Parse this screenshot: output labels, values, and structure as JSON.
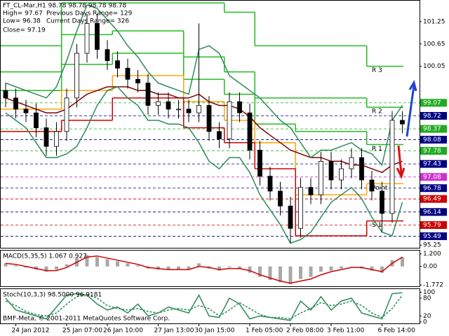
{
  "chart_data": {
    "type": "candlestick",
    "annotations": [
      "FT_CL-Mar,H1  98.78 98.78 98.78 98.78",
      "High= 97.67",
      "Previous Days Range= 129",
      "Low= 96.38",
      "Current Days Range= 326",
      "Close= 97.19"
    ],
    "watermark": "BMF-Meta, © 2001-2011 MetaQuotes Software Corp.",
    "x": [
      null,
      "24 Jan 2012",
      null,
      null,
      null,
      null,
      "25 Jan 07:00",
      null,
      null,
      null,
      "26 Jan 10:00",
      null,
      null,
      null,
      null,
      "27 Jan 13:00",
      null,
      null,
      null,
      "30 Jan 15:00",
      null,
      null,
      null,
      null,
      "1 Feb 05:00",
      null,
      null,
      null,
      "2 Feb 08:00",
      null,
      null,
      null,
      "3 Feb 11:00",
      null,
      null,
      null,
      null,
      "6 Feb 14:00",
      null,
      null
    ],
    "candles": [
      [
        99.4,
        99.6,
        98.95,
        99.2
      ],
      [
        99.2,
        99.45,
        98.65,
        98.9
      ],
      [
        98.9,
        99.15,
        98.55,
        98.8
      ],
      [
        98.8,
        99.05,
        98.15,
        98.4
      ],
      [
        98.4,
        98.65,
        97.65,
        97.9
      ],
      [
        97.9,
        98.55,
        97.65,
        98.3
      ],
      [
        98.3,
        99.45,
        98.05,
        99.2
      ],
      [
        99.2,
        100.65,
        98.95,
        100.4
      ],
      [
        100.4,
        101.45,
        100.15,
        101.2
      ],
      [
        101.2,
        101.45,
        100.25,
        100.5
      ],
      [
        100.5,
        100.75,
        99.95,
        100.2
      ],
      [
        100.2,
        100.45,
        99.75,
        100.0
      ],
      [
        100.0,
        100.25,
        99.45,
        99.7
      ],
      [
        99.7,
        99.95,
        99.35,
        99.6
      ],
      [
        99.6,
        99.85,
        98.75,
        99.0
      ],
      [
        99.0,
        99.35,
        98.75,
        99.1
      ],
      [
        99.1,
        99.35,
        98.65,
        98.9
      ],
      [
        98.9,
        99.15,
        98.65,
        98.9
      ],
      [
        98.9,
        99.15,
        98.55,
        98.8
      ],
      [
        98.8,
        101.2,
        98.55,
        99.0
      ],
      [
        99.0,
        99.25,
        98.05,
        98.3
      ],
      [
        98.3,
        98.55,
        97.85,
        98.1
      ],
      [
        98.1,
        99.35,
        97.85,
        99.1
      ],
      [
        99.1,
        99.35,
        98.55,
        98.8
      ],
      [
        98.8,
        99.05,
        97.55,
        97.8
      ],
      [
        97.8,
        98.05,
        96.85,
        97.1
      ],
      [
        97.1,
        97.35,
        96.45,
        96.7
      ],
      [
        96.7,
        96.95,
        96.05,
        96.3
      ],
      [
        96.3,
        96.55,
        95.3,
        95.7
      ],
      [
        95.7,
        97.05,
        95.45,
        96.8
      ],
      [
        96.8,
        97.05,
        96.35,
        96.6
      ],
      [
        96.6,
        97.75,
        96.35,
        97.5
      ],
      [
        97.5,
        97.75,
        96.75,
        97.0
      ],
      [
        97.0,
        97.55,
        96.75,
        97.3
      ],
      [
        97.3,
        97.85,
        97.05,
        97.6
      ],
      [
        97.6,
        97.85,
        96.75,
        97.0
      ],
      [
        97.0,
        97.25,
        96.45,
        96.7
      ],
      [
        96.7,
        96.95,
        95.6,
        96.1
      ],
      [
        96.1,
        98.85,
        95.85,
        98.6
      ],
      [
        98.6,
        98.85,
        98.25,
        98.5
      ]
    ],
    "ylim": [
      95.16,
      101.81
    ],
    "yticks": [
      101.25,
      100.65,
      100.05,
      95.25
    ],
    "lines": [
      {
        "color": "#800000",
        "values": [
          99.2,
          99.1,
          99.0,
          98.9,
          98.8,
          98.8,
          98.9,
          99.1,
          99.3,
          99.4,
          99.5,
          99.5,
          99.5,
          99.4,
          99.4,
          99.3,
          99.3,
          99.2,
          99.2,
          99.3,
          99.1,
          99.0,
          99.0,
          98.9,
          98.7,
          98.4,
          98.2,
          98.0,
          97.8,
          97.7,
          97.6,
          97.6,
          97.5,
          97.5,
          97.4,
          97.4,
          97.3,
          97.2,
          97.4,
          97.5
        ]
      },
      {
        "color": "#2e8b57",
        "values": [
          99.6,
          99.5,
          99.4,
          99.3,
          99.2,
          99.5,
          100.2,
          101.0,
          101.7,
          101.6,
          101.3,
          101.0,
          100.6,
          100.3,
          99.9,
          99.6,
          99.5,
          99.4,
          99.3,
          100.5,
          100.6,
          100.4,
          99.8,
          99.6,
          99.4,
          99.2,
          98.9,
          98.6,
          98.4,
          98.0,
          97.6,
          97.8,
          97.8,
          97.9,
          98.0,
          97.8,
          97.7,
          97.4,
          98.6,
          99.0
        ]
      },
      {
        "color": "#2e8b57",
        "values": [
          98.8,
          98.6,
          98.4,
          98.0,
          97.6,
          97.6,
          97.7,
          97.9,
          98.4,
          99.0,
          99.4,
          99.5,
          99.2,
          99.0,
          98.6,
          98.6,
          98.5,
          98.5,
          98.4,
          98.0,
          97.5,
          97.3,
          97.6,
          97.6,
          97.2,
          96.6,
          96.2,
          95.8,
          95.3,
          95.4,
          95.6,
          96.0,
          96.4,
          96.6,
          96.8,
          96.5,
          96.0,
          95.6,
          95.5,
          96.4
        ]
      }
    ],
    "pivots": [
      {
        "name": "R 3",
        "color": "#22bb22",
        "values": [
          100.6,
          100.6,
          100.6,
          100.6,
          100.6,
          100.6,
          101.75,
          101.75,
          101.75,
          101.75,
          101.75,
          101.75,
          101.75,
          101.75,
          101.75,
          101.75,
          101.75,
          101.75,
          101.75,
          101.75,
          101.75,
          101.75,
          101.5,
          101.5,
          101.5,
          100.6,
          100.6,
          100.6,
          100.6,
          100.6,
          100.6,
          100.6,
          100.6,
          100.6,
          100.6,
          100.6,
          100.05,
          100.05,
          100.05,
          100.05
        ]
      },
      {
        "name": "R 2",
        "color": "#22bb22",
        "values": [
          99.9,
          99.9,
          99.9,
          99.9,
          99.9,
          99.9,
          100.9,
          100.9,
          100.9,
          100.9,
          100.9,
          101.0,
          101.0,
          101.0,
          101.0,
          101.0,
          101.0,
          101.0,
          100.3,
          100.3,
          100.3,
          100.3,
          99.9,
          99.9,
          99.9,
          99.2,
          99.2,
          99.2,
          99.2,
          99.2,
          99.2,
          99.2,
          99.2,
          99.2,
          99.2,
          99.2,
          98.95,
          98.95,
          98.95,
          98.95
        ]
      },
      {
        "name": "R 1",
        "color": "#22bb22",
        "values": [
          99.4,
          99.4,
          99.4,
          99.4,
          99.4,
          99.4,
          100.1,
          100.1,
          100.1,
          100.1,
          100.1,
          100.4,
          100.4,
          100.4,
          100.4,
          100.4,
          100.4,
          100.4,
          99.7,
          99.7,
          99.7,
          99.7,
          99.3,
          99.3,
          99.3,
          98.5,
          98.5,
          98.5,
          98.5,
          98.3,
          98.3,
          98.3,
          98.3,
          98.3,
          98.3,
          98.3,
          97.95,
          97.95,
          97.95,
          97.95
        ]
      },
      {
        "name": "Point",
        "color": "#ffa500",
        "values": [
          98.9,
          98.9,
          98.9,
          98.9,
          98.9,
          98.9,
          99.4,
          99.4,
          99.4,
          99.4,
          99.4,
          99.8,
          99.8,
          99.8,
          99.8,
          99.8,
          99.8,
          99.8,
          99.1,
          99.1,
          99.1,
          99.1,
          98.6,
          98.6,
          98.6,
          98.0,
          98.0,
          98.0,
          98.0,
          96.6,
          96.6,
          96.6,
          96.6,
          96.6,
          96.6,
          96.6,
          96.9,
          96.9,
          96.9,
          96.9
        ]
      },
      {
        "name": "S 1",
        "color": "#cc0000",
        "values": [
          98.3,
          98.3,
          98.3,
          98.3,
          98.3,
          98.3,
          98.6,
          98.6,
          98.6,
          98.6,
          98.6,
          99.2,
          99.2,
          99.2,
          99.2,
          99.2,
          99.2,
          99.2,
          98.4,
          98.4,
          98.4,
          98.4,
          98.0,
          98.0,
          98.0,
          97.3,
          97.3,
          97.3,
          97.3,
          95.5,
          95.5,
          95.5,
          95.5,
          95.5,
          95.5,
          95.5,
          95.9,
          95.9,
          95.9,
          95.9
        ]
      }
    ],
    "levels": [
      {
        "value": 99.07,
        "color": "#22aa22"
      },
      {
        "value": 98.72,
        "color": "#000080"
      },
      {
        "value": 98.37,
        "color": "#22aa22"
      },
      {
        "value": 98.08,
        "color": "#000080"
      },
      {
        "value": 97.78,
        "color": "#22aa22"
      },
      {
        "value": 97.43,
        "color": "#000080"
      },
      {
        "value": 97.08,
        "color": "#cc33cc"
      },
      {
        "value": 96.78,
        "color": "#000080"
      },
      {
        "value": 96.49,
        "color": "#cc0000"
      },
      {
        "value": 96.14,
        "color": "#000080"
      },
      {
        "value": 95.79,
        "color": "#cc0000"
      },
      {
        "value": 95.49,
        "color": "#000080"
      }
    ],
    "panels": [
      {
        "title": "MACD(5,35,5) 1.067 0.927",
        "ylim": [
          -1.9,
          1.45
        ],
        "yticks": [
          {
            "value": 1.2,
            "label": "1.200"
          },
          {
            "value": 0,
            "label": "0.00"
          },
          -1.772
        ],
        "bars": {
          "color": "#a8a8a8",
          "values": [
            0.3,
            0.1,
            -0.1,
            -0.3,
            -0.5,
            -0.3,
            0.2,
            0.8,
            1.1,
            0.9,
            0.7,
            0.5,
            0.3,
            0.1,
            -0.2,
            -0.3,
            -0.3,
            -0.3,
            -0.3,
            0.3,
            -0.2,
            -0.4,
            -0.1,
            -0.2,
            -0.6,
            -1.0,
            -1.3,
            -1.5,
            -1.7,
            -1.2,
            -1.0,
            -0.5,
            -0.4,
            -0.2,
            0.0,
            -0.2,
            -0.4,
            -0.6,
            0.6,
            0.9
          ]
        },
        "lines": [
          {
            "color": "#cc0000",
            "values": [
              0.3,
              0.2,
              0.0,
              -0.2,
              -0.4,
              -0.4,
              -0.1,
              0.4,
              0.9,
              1.0,
              0.8,
              0.6,
              0.4,
              0.2,
              -0.1,
              -0.2,
              -0.3,
              -0.3,
              -0.3,
              0.0,
              -0.1,
              -0.3,
              -0.2,
              -0.2,
              -0.4,
              -0.8,
              -1.1,
              -1.4,
              -1.6,
              -1.4,
              -1.2,
              -0.8,
              -0.5,
              -0.3,
              -0.1,
              -0.1,
              -0.3,
              -0.5,
              0.3,
              0.9
            ]
          }
        ]
      },
      {
        "title": "Stoch(10,3,3) 98.5000 96.9181",
        "ylim": [
          -5,
          108
        ],
        "yticks": [
          100,
          80,
          20,
          0
        ],
        "lines": [
          {
            "color": "#2e8b57",
            "values": [
              80,
              40,
              30,
              20,
              10,
              50,
              90,
              95,
              90,
              60,
              40,
              50,
              30,
              60,
              20,
              30,
              50,
              40,
              30,
              90,
              20,
              15,
              80,
              60,
              10,
              20,
              15,
              10,
              5,
              70,
              40,
              85,
              40,
              70,
              80,
              30,
              20,
              10,
              95,
              98
            ]
          },
          {
            "color": "#2e8b57",
            "dash": true,
            "values": [
              70,
              55,
              35,
              25,
              20,
              30,
              60,
              85,
              92,
              80,
              55,
              45,
              40,
              45,
              35,
              30,
              40,
              45,
              40,
              55,
              45,
              20,
              40,
              65,
              45,
              25,
              15,
              15,
              10,
              30,
              45,
              65,
              55,
              60,
              70,
              55,
              30,
              15,
              45,
              90
            ]
          }
        ]
      }
    ]
  }
}
